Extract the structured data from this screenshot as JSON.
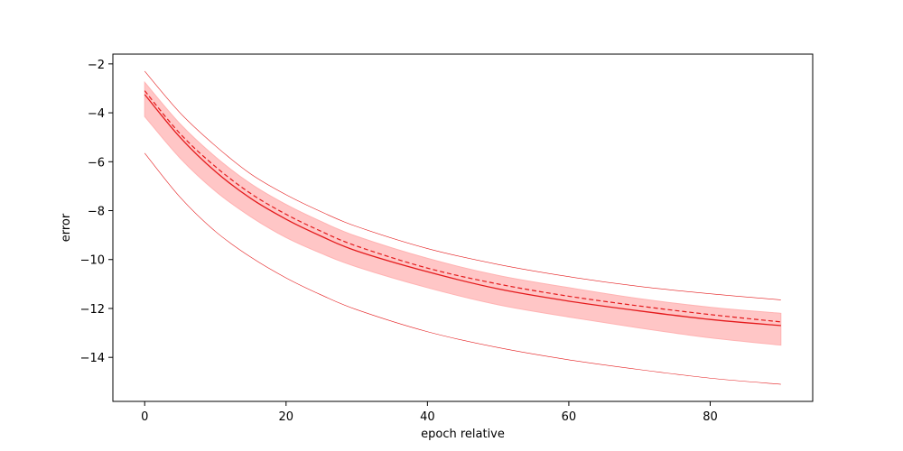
{
  "chart_data": {
    "type": "line",
    "title": "",
    "xlabel": "epoch relative",
    "ylabel": "error",
    "xlim": [
      -4.5,
      94.5
    ],
    "ylim": [
      -15.8,
      -1.6
    ],
    "x_ticks": [
      0,
      20,
      40,
      60,
      80
    ],
    "y_ticks": [
      -2,
      -4,
      -6,
      -8,
      -10,
      -12,
      -14
    ],
    "y_tick_labels": [
      "−2",
      "−4",
      "−6",
      "−8",
      "−10",
      "−12",
      "−14"
    ],
    "grid": false,
    "legend": "none",
    "colors": {
      "line": "#e41a1c",
      "band": "#ffb3b3"
    },
    "x": [
      0,
      5,
      10,
      15,
      20,
      25,
      30,
      40,
      50,
      60,
      70,
      80,
      90
    ],
    "series": [
      {
        "style": "solid",
        "values": [
          -3.25,
          -5.0,
          -6.4,
          -7.5,
          -8.35,
          -9.05,
          -9.65,
          -10.5,
          -11.2,
          -11.7,
          -12.1,
          -12.45,
          -12.7
        ]
      },
      {
        "style": "dashed",
        "values": [
          -3.1,
          -4.85,
          -6.2,
          -7.3,
          -8.15,
          -8.85,
          -9.45,
          -10.35,
          -11.0,
          -11.5,
          -11.9,
          -12.25,
          -12.55
        ]
      },
      {
        "style": "thin-upper",
        "values": [
          -2.3,
          -4.0,
          -5.35,
          -6.5,
          -7.35,
          -8.05,
          -8.65,
          -9.55,
          -10.2,
          -10.7,
          -11.1,
          -11.4,
          -11.65
        ]
      },
      {
        "style": "thin-lower",
        "values": [
          -5.65,
          -7.45,
          -8.85,
          -9.9,
          -10.75,
          -11.45,
          -12.05,
          -12.95,
          -13.6,
          -14.1,
          -14.5,
          -14.85,
          -15.1
        ]
      }
    ],
    "band": {
      "upper": [
        -2.75,
        -4.45,
        -5.8,
        -6.9,
        -7.75,
        -8.45,
        -9.05,
        -9.95,
        -10.65,
        -11.15,
        -11.6,
        -11.95,
        -12.2
      ],
      "lower": [
        -4.15,
        -5.85,
        -7.2,
        -8.25,
        -9.1,
        -9.75,
        -10.3,
        -11.15,
        -11.85,
        -12.35,
        -12.8,
        -13.2,
        -13.5
      ]
    }
  }
}
